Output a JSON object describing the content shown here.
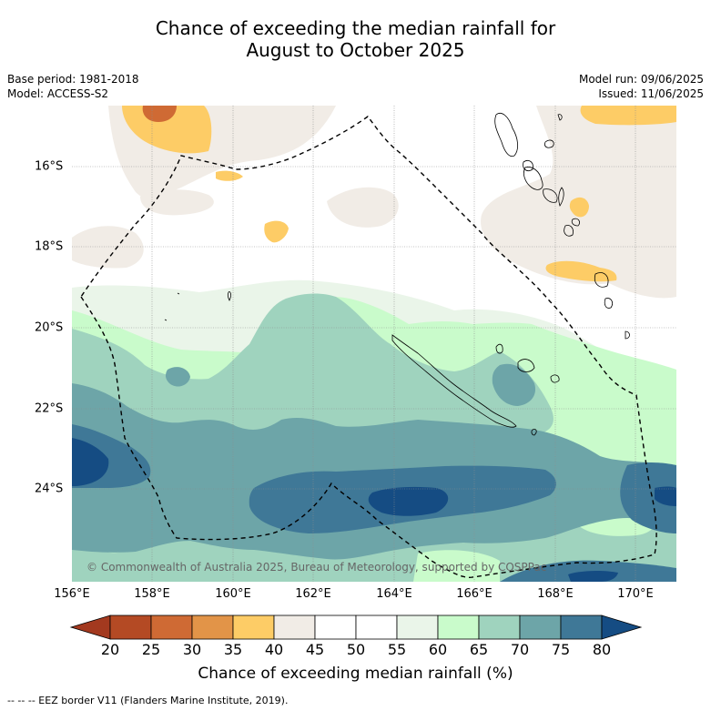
{
  "title": {
    "line1": "Chance of exceeding the median rainfall for",
    "line2": "August to October 2025"
  },
  "meta": {
    "base_period": "Base period: 1981-2018",
    "model": "Model: ACCESS-S2",
    "model_run": "Model run: 09/06/2025",
    "issued": "Issued: 11/06/2025"
  },
  "map": {
    "lon_labels": [
      "156°E",
      "158°E",
      "160°E",
      "162°E",
      "164°E",
      "166°E",
      "168°E",
      "170°E"
    ],
    "lat_labels": [
      "16°S",
      "18°S",
      "20°S",
      "22°S",
      "24°S"
    ],
    "copyright": "© Commonwealth of Australia 2025, Bureau of Meteorology, supported by COSPPac"
  },
  "colorbar": {
    "ticks": [
      "20",
      "25",
      "30",
      "35",
      "40",
      "45",
      "50",
      "55",
      "60",
      "65",
      "70",
      "75",
      "80"
    ],
    "colors": [
      "#a3391f",
      "#b44a24",
      "#cf6a34",
      "#e29448",
      "#fdcc66",
      "#f1ece6",
      "#ffffff",
      "#ffffff",
      "#eaf5e9",
      "#c9fbcb",
      "#9fd3be",
      "#6da5a8",
      "#3f7897",
      "#154c83"
    ],
    "title": "Chance of exceeding median rainfall (%)"
  },
  "footer": {
    "legend_text": "-- -- -- EEZ border V11 (Flanders Marine Institute, 2019)."
  },
  "colors": {
    "c35_40": "#fdcc66",
    "c40_45": "#f1ece6",
    "c55_60": "#eaf5e9",
    "c60_65": "#c9fbcb",
    "c65_70": "#9fd3be",
    "c70_75": "#6da5a8",
    "c75_80": "#3f7897",
    "c80": "#154c83"
  }
}
